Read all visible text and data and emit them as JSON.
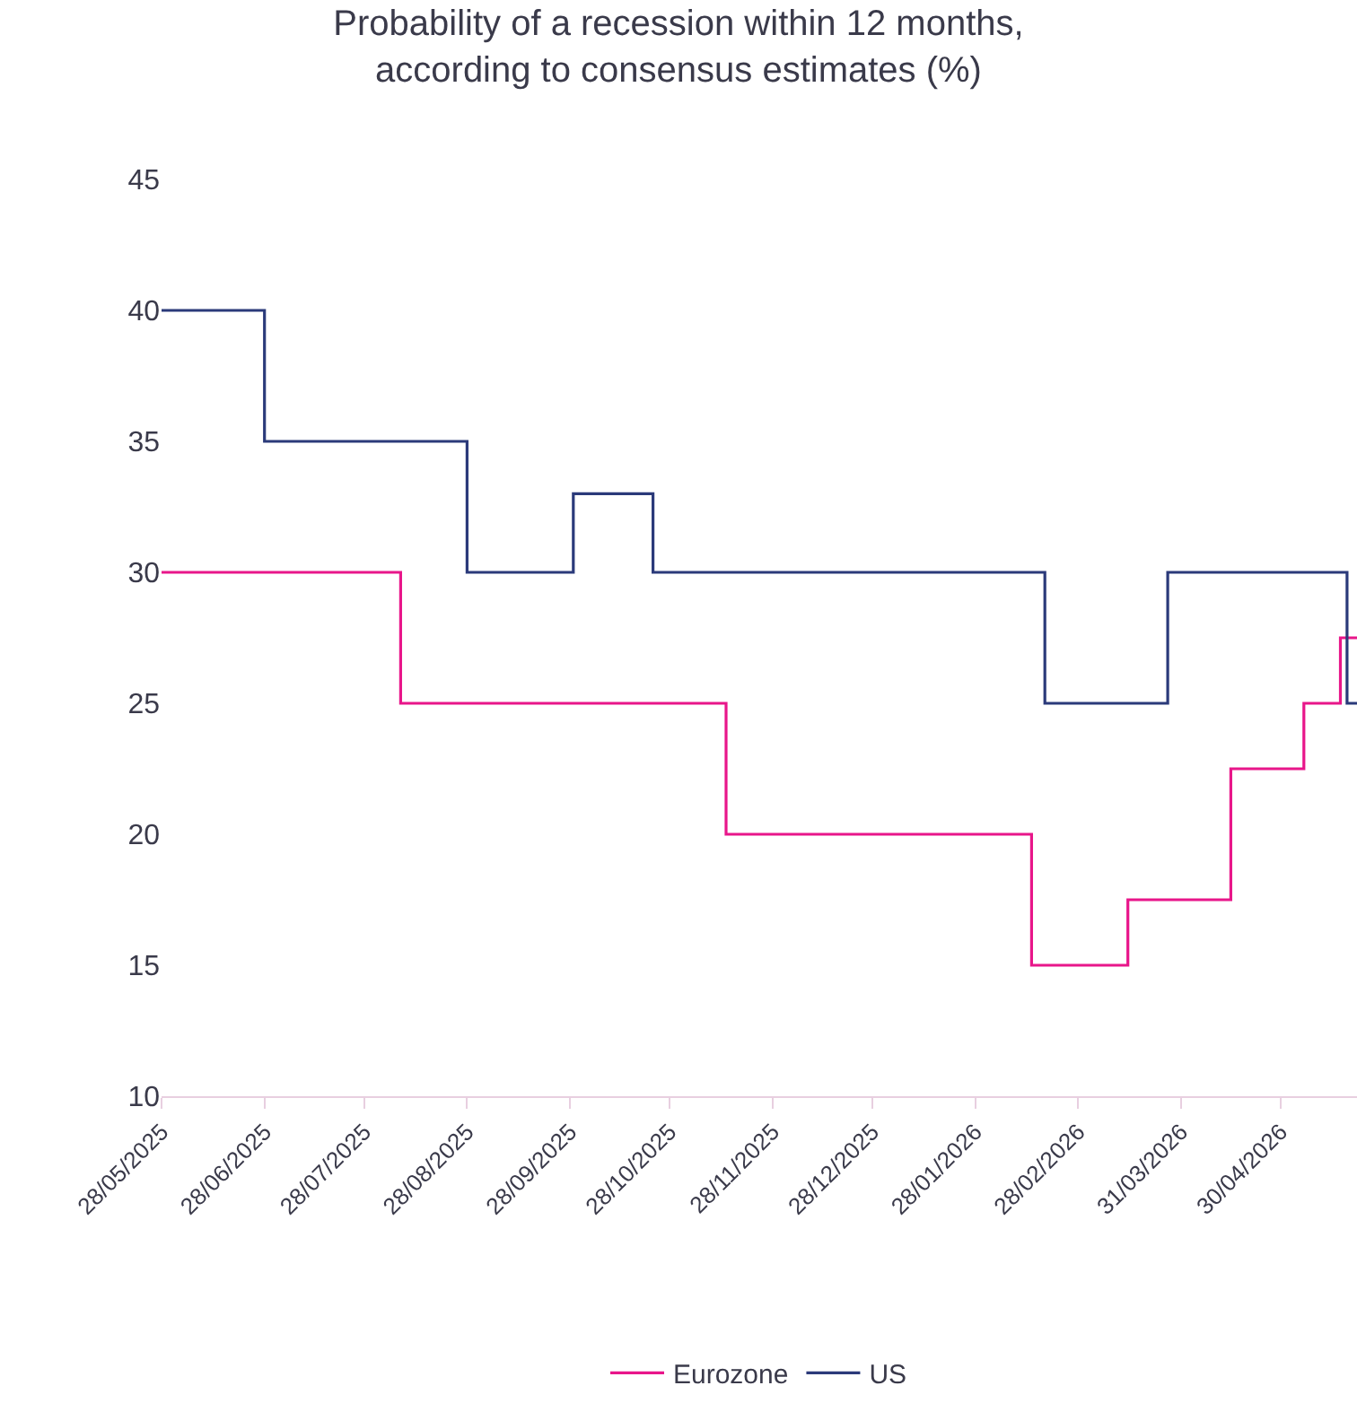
{
  "chart_data": {
    "type": "step",
    "title": "Probability of a recession within 12 months,\naccording to consensus estimates (%)",
    "xlim": [
      "2025-05-28",
      "2026-05-23"
    ],
    "xticks": [
      {
        "value": "2025-05-28",
        "label": "28/05/2025"
      },
      {
        "value": "2025-06-28",
        "label": "28/06/2025"
      },
      {
        "value": "2025-07-28",
        "label": "28/07/2025"
      },
      {
        "value": "2025-08-28",
        "label": "28/08/2025"
      },
      {
        "value": "2025-09-28",
        "label": "28/09/2025"
      },
      {
        "value": "2025-10-28",
        "label": "28/10/2025"
      },
      {
        "value": "2025-11-28",
        "label": "28/11/2025"
      },
      {
        "value": "2025-12-28",
        "label": "28/12/2025"
      },
      {
        "value": "2026-01-28",
        "label": "28/01/2026"
      },
      {
        "value": "2026-02-28",
        "label": "28/02/2026"
      },
      {
        "value": "2026-03-31",
        "label": "31/03/2026"
      },
      {
        "value": "2026-04-30",
        "label": "30/04/2026"
      }
    ],
    "ylim": [
      10,
      45
    ],
    "yticks": [
      10,
      15,
      20,
      25,
      30,
      35,
      40,
      45
    ],
    "legend": "bottom",
    "series": [
      {
        "name": "Eurozone",
        "color": "#e8168a",
        "x": [
          "2025-05-28",
          "2025-08-08",
          "2025-11-14",
          "2026-02-14",
          "2026-03-15",
          "2026-04-15",
          "2026-05-07",
          "2026-05-18",
          "2026-05-23"
        ],
        "values": [
          30,
          25,
          20,
          15,
          17.5,
          22.5,
          25,
          27.5,
          27.5
        ]
      },
      {
        "name": "US",
        "color": "#2b3a7a",
        "x": [
          "2025-05-28",
          "2025-06-28",
          "2025-08-28",
          "2025-09-29",
          "2025-10-23",
          "2026-02-18",
          "2026-03-27",
          "2026-05-20",
          "2026-05-23"
        ],
        "values": [
          40,
          35,
          30,
          33,
          30,
          25,
          30,
          25,
          25
        ]
      }
    ]
  }
}
